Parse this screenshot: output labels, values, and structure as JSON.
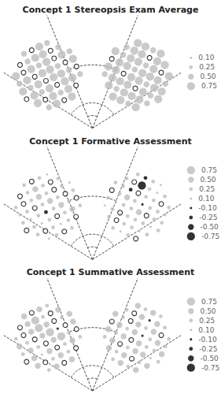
{
  "chart_data": [
    {
      "type": "scatter",
      "title": "Concept 1 Stereopsis Exam Average",
      "marker": "circle",
      "tick_labels": false,
      "color": {
        "positive": "#bdbdbd",
        "negative": "#000000"
      },
      "left_field": [
        [
          0.5,
          0,
          0.75,
          0.5
        ],
        [
          0,
          0.5,
          0.75,
          0.75,
          0,
          0.5
        ],
        [
          0.75,
          0,
          0.75,
          0.5,
          0.75,
          0,
          0.75,
          0.5
        ],
        [
          0.5,
          0.75,
          0,
          0.75,
          0.75,
          0.5,
          0,
          0.75
        ],
        [
          0.75,
          0.5,
          0.75,
          0,
          0.75,
          0.75,
          0.5,
          0
        ],
        [
          0,
          0.75,
          0.5,
          0.75,
          0,
          0.75,
          0.75,
          0.5
        ],
        [
          0.75,
          0,
          0.75,
          0.5,
          0.75,
          0
        ],
        [
          0.5,
          0.75,
          0,
          0.75
        ]
      ],
      "right_field": [
        [
          0.75,
          0.75,
          0.5,
          0.75
        ],
        [
          0.5,
          0.75,
          0.75,
          0,
          0.75,
          0.75
        ],
        [
          0.75,
          0.5,
          0.75,
          0.75,
          0.5,
          0.75,
          0,
          0.75
        ],
        [
          0,
          0.75,
          0.75,
          0.5,
          0.75,
          0.75,
          0.75,
          0.5
        ],
        [
          0.75,
          0.75,
          0,
          0.75,
          0.75,
          0.5,
          0.75,
          0.75
        ],
        [
          0.5,
          0.75,
          0.75,
          0.75,
          0,
          0.75,
          0.5,
          0.75
        ],
        [
          0.75,
          0.5,
          0.75,
          0.75,
          0.75,
          0.5
        ],
        [
          0.75,
          0.75,
          0.5,
          0.75
        ]
      ],
      "size_legend": [
        {
          "value": 0.1,
          "label": "0.10"
        },
        {
          "value": 0.25,
          "label": "0.25"
        },
        {
          "value": 0.5,
          "label": "0.50"
        },
        {
          "value": 0.75,
          "label": "0.75"
        }
      ]
    },
    {
      "type": "scatter",
      "title": "Concept 1 Formative Assessment",
      "marker": "circle",
      "tick_labels": false,
      "color": {
        "positive": "#bdbdbd",
        "negative": "#000000"
      },
      "left_field": [
        [
          0.25,
          0,
          0.25,
          0.1
        ],
        [
          0,
          0.25,
          0.5,
          0.25,
          0,
          0.25
        ],
        [
          0.25,
          0,
          0.25,
          0.5,
          0.25,
          0,
          0.25,
          0.1
        ],
        [
          0.1,
          0.25,
          0,
          0.25,
          0.5,
          0.25,
          0,
          0.25
        ],
        [
          0.25,
          0.1,
          0.25,
          -0.25,
          0.25,
          0.5,
          0.25,
          0
        ],
        [
          0,
          0.25,
          0.1,
          0.25,
          0,
          0.25,
          0.5,
          0.25
        ],
        [
          0.25,
          0,
          0.25,
          0.1,
          0.25,
          0
        ],
        [
          0.1,
          0.25,
          0,
          0.25
        ]
      ],
      "right_field": [
        [
          0.25,
          -0.25,
          0.25,
          0.1
        ],
        [
          0.25,
          0,
          -0.75,
          0.25,
          0.1,
          0.25
        ],
        [
          0.25,
          0.25,
          -0.25,
          0,
          0.25,
          0.25,
          0,
          0.25
        ],
        [
          0,
          0.25,
          0.5,
          0.25,
          -0.1,
          0.25,
          0.25,
          0.1
        ],
        [
          0.25,
          0.1,
          0.25,
          0.25,
          0.5,
          0,
          0.25,
          0.25
        ],
        [
          0.1,
          0.25,
          0,
          0.25,
          0.25,
          0.25,
          0.1,
          0.25
        ],
        [
          0.25,
          0,
          0.25,
          0.25,
          0.1,
          0.25
        ],
        [
          0.25,
          0.1,
          0.25,
          0
        ]
      ],
      "size_legend": [
        {
          "value": 0.75,
          "label": "0.75"
        },
        {
          "value": 0.5,
          "label": "0.50"
        },
        {
          "value": 0.25,
          "label": "0.25"
        },
        {
          "value": 0.1,
          "label": "0.10"
        },
        {
          "value": -0.1,
          "label": "-0.10"
        },
        {
          "value": -0.25,
          "label": "-0.25"
        },
        {
          "value": -0.5,
          "label": "-0.50"
        },
        {
          "value": -0.75,
          "label": "-0.75"
        }
      ]
    },
    {
      "type": "scatter",
      "title": "Concept 1 Summative Assessment",
      "marker": "circle",
      "tick_labels": false,
      "color": {
        "positive": "#bdbdbd",
        "negative": "#000000"
      },
      "left_field": [
        [
          0.5,
          0,
          0.5,
          0.25
        ],
        [
          0,
          0.5,
          0.75,
          0.25,
          0,
          0.5
        ],
        [
          0.25,
          0,
          0.5,
          0.75,
          0.5,
          0,
          0.25,
          0.5
        ],
        [
          0.5,
          0.25,
          0,
          0.5,
          0.75,
          -0.1,
          0,
          0.5
        ],
        [
          0.25,
          0.5,
          0.25,
          0,
          0.5,
          0.75,
          0.25,
          0
        ],
        [
          0,
          0.5,
          0.1,
          0.5,
          0,
          0.25,
          0.5,
          0.25
        ],
        [
          0.5,
          0,
          0.25,
          0.5,
          0.25,
          0
        ],
        [
          0.25,
          0.5,
          0,
          0.5
        ]
      ],
      "right_field": [
        [
          0.5,
          0.25,
          0.5,
          0.25
        ],
        [
          0.25,
          0,
          0.5,
          -0.1,
          0.5,
          0.25
        ],
        [
          0.5,
          0.25,
          0,
          0.5,
          0.25,
          0.5,
          0,
          0.25
        ],
        [
          0,
          0.5,
          0.25,
          0.5,
          -0.1,
          0.25,
          0.5,
          0.25
        ],
        [
          0.5,
          0.25,
          0.5,
          0,
          0.5,
          0.25,
          0.25,
          0.5
        ],
        [
          0.25,
          0.5,
          0,
          0.25,
          0.5,
          0.5,
          0.1,
          0.25
        ],
        [
          0.5,
          0.25,
          0.5,
          0,
          0.25,
          0.5
        ],
        [
          0.25,
          0.5,
          0.25,
          0.5
        ]
      ],
      "size_legend": [
        {
          "value": 0.75,
          "label": "0.75"
        },
        {
          "value": 0.5,
          "label": "0.50"
        },
        {
          "value": 0.25,
          "label": "0.25"
        },
        {
          "value": 0.1,
          "label": "0.10"
        },
        {
          "value": -0.1,
          "label": "-0.10"
        },
        {
          "value": -0.25,
          "label": "-0.25"
        },
        {
          "value": -0.5,
          "label": "-0.50"
        },
        {
          "value": -0.75,
          "label": "-0.75"
        }
      ]
    }
  ]
}
